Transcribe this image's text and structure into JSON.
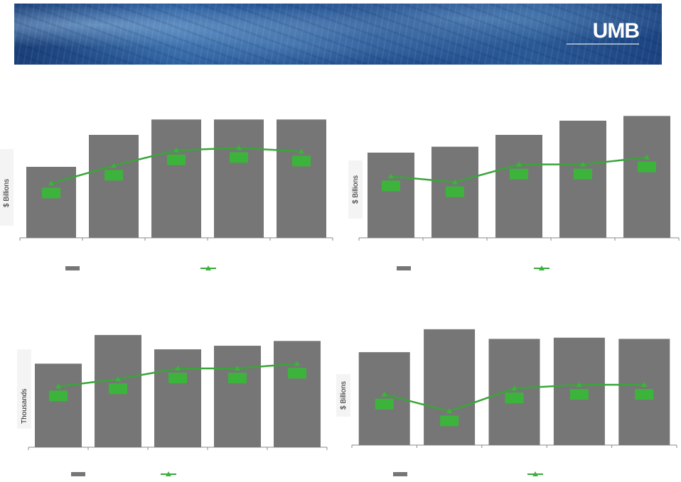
{
  "header": {
    "logo_text": "UMB"
  },
  "colors": {
    "bar": "#767676",
    "line": "#3aa53a",
    "marker": "#3cb43c",
    "axis": "#888888",
    "banner": "#2b5fa0"
  },
  "chart_data": [
    {
      "type": "bar",
      "id": "top-left",
      "ylabel": "$ Billions",
      "categories": [
        "",
        "",
        "",
        "",
        ""
      ],
      "values": [
        6.0,
        8.7,
        10.0,
        10.0,
        10.0
      ],
      "ylim": [
        0,
        12
      ],
      "series": [
        {
          "type": "bar",
          "values": [
            6.0,
            8.7,
            10.0,
            10.0,
            10.0
          ]
        },
        {
          "type": "line",
          "values": [
            4.6,
            6.1,
            7.4,
            7.6,
            7.3
          ]
        }
      ]
    },
    {
      "type": "bar",
      "id": "top-right",
      "ylabel": "$ Billions",
      "categories": [
        "",
        "",
        "",
        "",
        ""
      ],
      "values": [
        7.2,
        7.7,
        8.7,
        9.9,
        10.3
      ],
      "ylim": [
        0,
        12
      ],
      "series": [
        {
          "type": "bar",
          "values": [
            7.2,
            7.7,
            8.7,
            9.9,
            10.3
          ]
        },
        {
          "type": "line",
          "values": [
            5.2,
            4.7,
            6.2,
            6.2,
            6.8
          ]
        }
      ]
    },
    {
      "type": "bar",
      "id": "bottom-left",
      "ylabel": "Thousands",
      "categories": [
        "",
        "",
        "",
        "",
        ""
      ],
      "values": [
        7.0,
        9.4,
        8.2,
        8.5,
        8.9
      ],
      "ylim": [
        0,
        11
      ],
      "series": [
        {
          "type": "bar",
          "values": [
            7.0,
            9.4,
            8.2,
            8.5,
            8.9
          ]
        },
        {
          "type": "line",
          "values": [
            5.1,
            5.7,
            6.6,
            6.6,
            7.0
          ]
        }
      ]
    },
    {
      "type": "bar",
      "id": "bottom-right",
      "ylabel": "$ Billions",
      "categories": [
        "",
        "",
        "",
        "",
        ""
      ],
      "values": [
        7.7,
        9.6,
        8.8,
        8.9,
        8.8
      ],
      "ylim": [
        0,
        11
      ],
      "series": [
        {
          "type": "bar",
          "values": [
            7.7,
            9.6,
            8.8,
            8.9,
            8.8
          ]
        },
        {
          "type": "line",
          "values": [
            4.2,
            2.8,
            4.7,
            5.0,
            5.0
          ]
        }
      ]
    }
  ]
}
